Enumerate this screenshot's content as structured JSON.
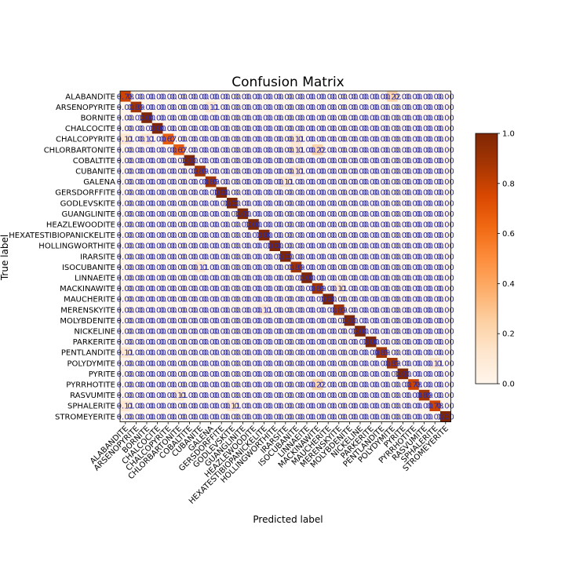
{
  "chart_data": {
    "type": "heatmap",
    "title": "Confusion Matrix",
    "xlabel": "Predicted label",
    "ylabel": "True label",
    "categories": [
      "ALABANDITE",
      "ARSENOPYRITE",
      "BORNITE",
      "CHALCOCITE",
      "CHALCOPYRITE",
      "CHLORBARTONITE",
      "COBALTITE",
      "CUBANITE",
      "GALENA",
      "GERSDORFFITE",
      "GODLEVSKITE",
      "GUANGLINITE",
      "HEAZLEWOODITE",
      "HEXATESTIBIOPANICKELITE",
      "HOLLINGWORTHITE",
      "IRARSITE",
      "ISOCUBANITE",
      "LINNAEITE",
      "MACKINAWITE",
      "MAUCHERITE",
      "MERENSKYITE",
      "MOLYBDENITE",
      "NICKELINE",
      "PARKERITE",
      "PENTLANDITE",
      "POLYDYMITE",
      "PYRITE",
      "PYRRHOTITE",
      "RASVUMITE",
      "SPHALERITE",
      "STROMEYERITE"
    ],
    "off_diagonal": [
      {
        "row": 0,
        "col": 25,
        "value": 0.22
      },
      {
        "row": 1,
        "col": 8,
        "value": 0.11
      },
      {
        "row": 4,
        "col": 0,
        "value": 0.11
      },
      {
        "row": 4,
        "col": 2,
        "value": 0.11
      },
      {
        "row": 4,
        "col": 16,
        "value": 0.11
      },
      {
        "row": 5,
        "col": 16,
        "value": 0.11
      },
      {
        "row": 5,
        "col": 18,
        "value": 0.22
      },
      {
        "row": 7,
        "col": 16,
        "value": 0.11
      },
      {
        "row": 8,
        "col": 15,
        "value": 0.11
      },
      {
        "row": 16,
        "col": 7,
        "value": 0.11
      },
      {
        "row": 18,
        "col": 20,
        "value": 0.11
      },
      {
        "row": 20,
        "col": 13,
        "value": 0.11
      },
      {
        "row": 24,
        "col": 0,
        "value": 0.11
      },
      {
        "row": 25,
        "col": 29,
        "value": 0.11
      },
      {
        "row": 27,
        "col": 18,
        "value": 0.22
      },
      {
        "row": 28,
        "col": 5,
        "value": 0.11
      },
      {
        "row": 29,
        "col": 0,
        "value": 0.11
      },
      {
        "row": 29,
        "col": 10,
        "value": 0.11
      }
    ],
    "diagonal": [
      0.78,
      0.89,
      1.0,
      1.0,
      0.67,
      0.67,
      1.0,
      0.89,
      0.89,
      1.0,
      1.0,
      1.0,
      1.0,
      1.0,
      1.0,
      1.0,
      0.89,
      1.0,
      0.89,
      1.0,
      0.89,
      1.0,
      1.0,
      1.0,
      0.89,
      0.89,
      1.0,
      0.78,
      0.89,
      0.78,
      1.0
    ],
    "colormap": "Oranges",
    "colorbar": {
      "min": 0.0,
      "max": 1.0,
      "ticks": [
        "0.0",
        "0.2",
        "0.4",
        "0.6",
        "0.8",
        "1.0"
      ]
    },
    "value_format": "0.00",
    "label_color": "#2a2aa0"
  }
}
